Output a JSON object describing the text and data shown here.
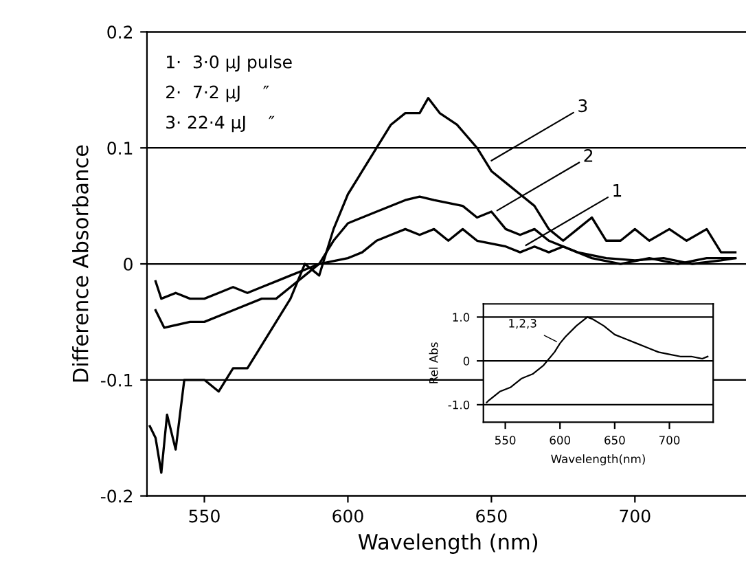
{
  "chart_data": [
    {
      "type": "line",
      "xlabel": "Wavelength (nm)",
      "ylabel": "Difference Absorbance",
      "xlim": [
        530,
        740
      ],
      "ylim": [
        -0.2,
        0.2
      ],
      "xticks": [
        550,
        600,
        650,
        700
      ],
      "yticks": [
        {
          "value": -0.2,
          "label": "-0.2"
        },
        {
          "value": -0.1,
          "label": "-0.1"
        },
        0,
        0.1,
        0.2
      ],
      "grid": "y",
      "legend": false,
      "marker": "none",
      "line_style": "solid",
      "series": [
        {
          "color": "#000000",
          "x": [
            533,
            535,
            540,
            545,
            550,
            555,
            560,
            565,
            570,
            575,
            580,
            585,
            590,
            600,
            605,
            610,
            615,
            620,
            625,
            630,
            635,
            640,
            645,
            655,
            660,
            665,
            670,
            675,
            685,
            695,
            705,
            715,
            725,
            735
          ],
          "values": [
            -0.015,
            -0.03,
            -0.025,
            -0.03,
            -0.03,
            -0.025,
            -0.02,
            -0.025,
            -0.02,
            -0.015,
            -0.01,
            -0.005,
            0,
            0.005,
            0.01,
            0.02,
            0.025,
            0.03,
            0.025,
            0.03,
            0.02,
            0.03,
            0.02,
            0.015,
            0.01,
            0.015,
            0.01,
            0.015,
            0.005,
            0,
            0.005,
            0,
            0.005,
            0.005
          ]
        },
        {
          "color": "#000000",
          "x": [
            533,
            536,
            545,
            550,
            560,
            570,
            575,
            580,
            585,
            590,
            595,
            600,
            610,
            620,
            625,
            630,
            640,
            645,
            650,
            655,
            660,
            665,
            670,
            680,
            690,
            700,
            710,
            720,
            730,
            735
          ],
          "values": [
            -0.04,
            -0.055,
            -0.05,
            -0.05,
            -0.04,
            -0.03,
            -0.03,
            -0.02,
            -0.01,
            0,
            0.02,
            0.035,
            0.045,
            0.055,
            0.058,
            0.055,
            0.05,
            0.04,
            0.045,
            0.03,
            0.025,
            0.03,
            0.02,
            0.01,
            0.005,
            0.003,
            0.005,
            0,
            0.003,
            0.005
          ]
        },
        {
          "color": "#000000",
          "x": [
            531,
            533,
            535,
            537,
            540,
            543,
            550,
            555,
            560,
            565,
            570,
            575,
            580,
            585,
            590,
            595,
            600,
            605,
            610,
            615,
            620,
            625,
            628,
            632,
            638,
            645,
            650,
            655,
            660,
            665,
            670,
            675,
            680,
            685,
            690,
            695,
            700,
            705,
            712,
            718,
            725,
            730,
            735
          ],
          "values": [
            -0.14,
            -0.15,
            -0.18,
            -0.13,
            -0.16,
            -0.1,
            -0.1,
            -0.11,
            -0.09,
            -0.09,
            -0.07,
            -0.05,
            -0.03,
            0,
            -0.01,
            0.03,
            0.06,
            0.08,
            0.1,
            0.12,
            0.13,
            0.13,
            0.143,
            0.13,
            0.12,
            0.1,
            0.08,
            0.07,
            0.06,
            0.05,
            0.03,
            0.02,
            0.03,
            0.04,
            0.02,
            0.02,
            0.03,
            0.02,
            0.03,
            0.02,
            0.03,
            0.01,
            0.01
          ]
        }
      ],
      "annotations": [
        "1·  3·0 μJ pulse",
        "2·  7·2 μJ    ″",
        "3· 22·4 μJ    ″",
        {
          "text": "1",
          "x": 662,
          "y": 0.016
        },
        {
          "text": "2",
          "x": 652,
          "y": 0.046
        },
        {
          "text": "3",
          "x": 650,
          "y": 0.089
        }
      ]
    },
    {
      "type": "line",
      "xlabel": "Wavelength(nm)",
      "ylabel": "Rel Abs",
      "xlim": [
        530,
        740
      ],
      "ylim": [
        -1.4,
        1.3
      ],
      "xticks": [
        550,
        600,
        650,
        700
      ],
      "yticks": [
        {
          "value": -1.0,
          "label": "-1.0"
        },
        0,
        {
          "value": 1.0,
          "label": "1.0"
        }
      ],
      "grid": "y",
      "legend": false,
      "marker": "none",
      "line_style": "solid",
      "series": [
        {
          "name": "1,2,3",
          "color": "#000000",
          "x": [
            533,
            535,
            545,
            555,
            565,
            575,
            585,
            595,
            600,
            605,
            615,
            625,
            630,
            640,
            650,
            660,
            670,
            680,
            690,
            700,
            710,
            720,
            730,
            735
          ],
          "values": [
            -0.95,
            -0.9,
            -0.7,
            -0.6,
            -0.4,
            -0.3,
            -0.1,
            0.2,
            0.4,
            0.55,
            0.8,
            1.0,
            0.95,
            0.8,
            0.6,
            0.5,
            0.4,
            0.3,
            0.2,
            0.15,
            0.1,
            0.1,
            0.05,
            0.1
          ]
        }
      ]
    }
  ]
}
